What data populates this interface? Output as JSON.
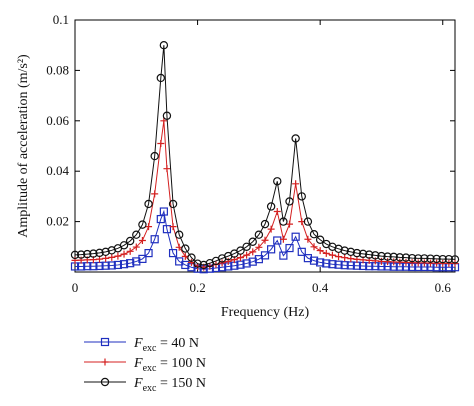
{
  "chart_data": {
    "type": "line",
    "xlabel": "Frequency (Hz)",
    "ylabel": "Amplitude of acceleration (m/s²)",
    "xlim": [
      0,
      0.62
    ],
    "ylim": [
      0,
      0.1
    ],
    "xticks": [
      "0",
      "0.2",
      "0.4",
      "0.6"
    ],
    "yticks": [
      "0.02",
      "0.04",
      "0.06",
      "0.08",
      "0.1"
    ],
    "grid": false,
    "legend_position": "bottom-left, below plot",
    "x": [
      0,
      0.01,
      0.02,
      0.03,
      0.04,
      0.05,
      0.06,
      0.07,
      0.08,
      0.09,
      0.1,
      0.11,
      0.12,
      0.13,
      0.14,
      0.145,
      0.15,
      0.16,
      0.17,
      0.18,
      0.19,
      0.2,
      0.21,
      0.22,
      0.23,
      0.24,
      0.25,
      0.26,
      0.27,
      0.28,
      0.29,
      0.3,
      0.31,
      0.32,
      0.33,
      0.34,
      0.35,
      0.36,
      0.37,
      0.38,
      0.39,
      0.4,
      0.41,
      0.42,
      0.43,
      0.44,
      0.45,
      0.46,
      0.47,
      0.48,
      0.49,
      0.5,
      0.51,
      0.52,
      0.53,
      0.54,
      0.55,
      0.56,
      0.57,
      0.58,
      0.59,
      0.6,
      0.61,
      0.62
    ],
    "series": [
      {
        "name": "F_exc = 40 N",
        "legend_main": "F",
        "legend_sub": "exc",
        "legend_value": " = 40 N",
        "color": "#1f2fbf",
        "marker": "square",
        "values": [
          0.0022,
          0.0022,
          0.0023,
          0.0023,
          0.0024,
          0.0025,
          0.0026,
          0.0028,
          0.0031,
          0.0035,
          0.0042,
          0.0052,
          0.0075,
          0.013,
          0.021,
          0.024,
          0.017,
          0.0075,
          0.0042,
          0.0028,
          0.0019,
          0.0013,
          0.0011,
          0.0013,
          0.0016,
          0.0019,
          0.0022,
          0.0025,
          0.0029,
          0.0034,
          0.0041,
          0.0051,
          0.0066,
          0.009,
          0.0125,
          0.0065,
          0.0095,
          0.014,
          0.008,
          0.0055,
          0.0045,
          0.0038,
          0.0034,
          0.0031,
          0.0029,
          0.0027,
          0.0026,
          0.0025,
          0.0024,
          0.0023,
          0.0023,
          0.0022,
          0.0022,
          0.0021,
          0.0021,
          0.0021,
          0.002,
          0.002,
          0.002,
          0.002,
          0.0019,
          0.0019,
          0.0019,
          0.0019
        ]
      },
      {
        "name": "F_exc = 100 N",
        "legend_main": "F",
        "legend_sub": "exc",
        "legend_value": " = 100 N",
        "color": "#d42020",
        "marker": "plus",
        "values": [
          0.0046,
          0.0047,
          0.0048,
          0.0049,
          0.0051,
          0.0054,
          0.0058,
          0.0063,
          0.0071,
          0.0082,
          0.0099,
          0.0125,
          0.018,
          0.031,
          0.051,
          0.06,
          0.041,
          0.018,
          0.0098,
          0.0062,
          0.0038,
          0.0022,
          0.0019,
          0.0023,
          0.003,
          0.0036,
          0.0042,
          0.0049,
          0.0057,
          0.0067,
          0.008,
          0.0098,
          0.0126,
          0.017,
          0.024,
          0.013,
          0.019,
          0.035,
          0.02,
          0.013,
          0.01,
          0.0085,
          0.0074,
          0.0067,
          0.0061,
          0.0057,
          0.0053,
          0.005,
          0.0048,
          0.0046,
          0.0044,
          0.0042,
          0.0041,
          0.004,
          0.0039,
          0.0038,
          0.0037,
          0.0036,
          0.0036,
          0.0035,
          0.0035,
          0.0034,
          0.0034,
          0.0034
        ]
      },
      {
        "name": "F_exc = 150 N",
        "legend_main": "F",
        "legend_sub": "exc",
        "legend_value": " = 150 N",
        "color": "#111111",
        "marker": "circle",
        "values": [
          0.0068,
          0.0069,
          0.0071,
          0.0073,
          0.0076,
          0.008,
          0.0086,
          0.0094,
          0.0106,
          0.0123,
          0.0148,
          0.0188,
          0.027,
          0.046,
          0.077,
          0.09,
          0.062,
          0.027,
          0.0148,
          0.0093,
          0.0057,
          0.0033,
          0.0028,
          0.0035,
          0.0044,
          0.0054,
          0.0063,
          0.0073,
          0.0085,
          0.01,
          0.012,
          0.0148,
          0.019,
          0.026,
          0.036,
          0.02,
          0.028,
          0.053,
          0.03,
          0.02,
          0.015,
          0.0128,
          0.0111,
          0.01,
          0.0092,
          0.0085,
          0.008,
          0.0075,
          0.0072,
          0.0069,
          0.0066,
          0.0063,
          0.0061,
          0.006,
          0.0058,
          0.0057,
          0.0055,
          0.0054,
          0.0054,
          0.0053,
          0.0052,
          0.0051,
          0.0051,
          0.005
        ]
      }
    ]
  }
}
